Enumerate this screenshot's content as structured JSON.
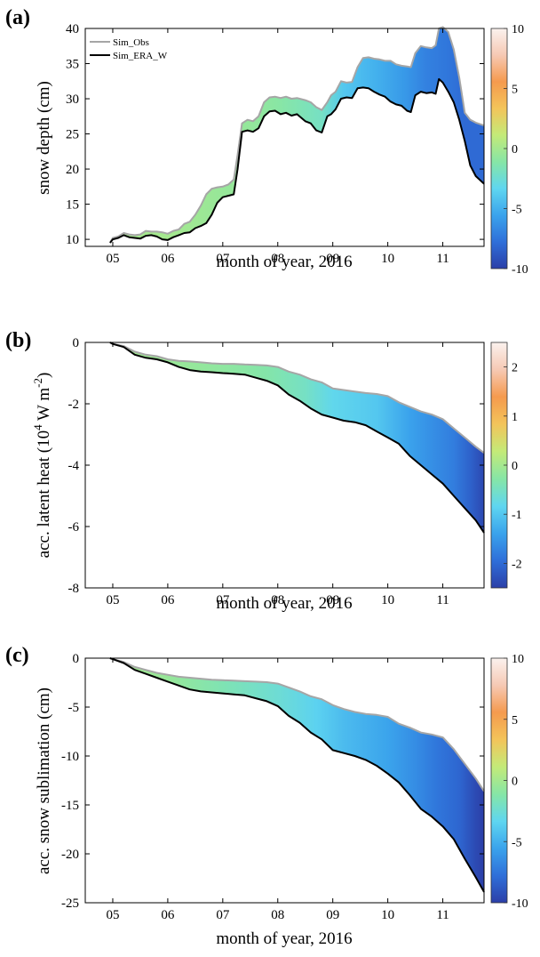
{
  "colorbar_colors": [
    "#2b3fa8",
    "#2f6fd9",
    "#3aa3ec",
    "#5fd6f0",
    "#86e6a6",
    "#c4ea78",
    "#f3c45a",
    "#f59a4e",
    "#f6c9b4",
    "#fbf2ee"
  ],
  "chart_data": [
    {
      "type": "area",
      "panel_label": "(a)",
      "xlabel": "month of year, 2016",
      "ylabel": "snow depth (cm)",
      "xlim": [
        4.5,
        11.75
      ],
      "ylim": [
        9,
        40
      ],
      "xticks": [
        5,
        6,
        7,
        8,
        9,
        10,
        11
      ],
      "xtick_labels": [
        "05",
        "06",
        "07",
        "08",
        "09",
        "10",
        "11"
      ],
      "yticks": [
        10,
        15,
        20,
        25,
        30,
        35,
        40
      ],
      "ytick_labels": [
        "10",
        "15",
        "20",
        "25",
        "30",
        "35",
        "40"
      ],
      "legend": [
        "Sim_Obs",
        "Sim_ERA_W"
      ],
      "legend_position": "top-left",
      "colorbar": {
        "range": [
          -10,
          10
        ],
        "ticks": [
          -10,
          -5,
          0,
          5,
          10
        ],
        "tick_labels": [
          "-10",
          "-5",
          "0",
          "5",
          "10"
        ]
      },
      "series": [
        {
          "name": "Sim_Obs",
          "color": "#a6a6a6",
          "x": [
            4.95,
            5.0,
            5.1,
            5.2,
            5.3,
            5.4,
            5.5,
            5.6,
            5.7,
            5.8,
            5.9,
            6.0,
            6.1,
            6.2,
            6.3,
            6.4,
            6.5,
            6.6,
            6.7,
            6.8,
            6.9,
            7.0,
            7.1,
            7.2,
            7.27,
            7.35,
            7.45,
            7.55,
            7.65,
            7.75,
            7.85,
            7.95,
            8.05,
            8.15,
            8.25,
            8.35,
            8.5,
            8.6,
            8.7,
            8.8,
            8.9,
            8.97,
            9.05,
            9.15,
            9.25,
            9.35,
            9.45,
            9.55,
            9.65,
            9.75,
            9.85,
            9.95,
            10.05,
            10.15,
            10.25,
            10.35,
            10.42,
            10.5,
            10.6,
            10.7,
            10.8,
            10.87,
            10.93,
            11.0,
            11.1,
            11.2,
            11.3,
            11.4,
            11.5,
            11.6,
            11.75
          ],
          "y": [
            9.5,
            10.2,
            10.4,
            10.9,
            10.7,
            10.6,
            10.7,
            11.2,
            11.1,
            11.1,
            11.0,
            10.8,
            11.2,
            11.4,
            12.2,
            12.5,
            13.5,
            14.8,
            16.4,
            17.2,
            17.4,
            17.5,
            17.8,
            18.5,
            22.0,
            26.5,
            27.0,
            26.8,
            27.5,
            29.5,
            30.2,
            30.3,
            30.1,
            30.3,
            30.0,
            30.1,
            29.8,
            29.5,
            28.8,
            28.4,
            29.5,
            30.5,
            31.0,
            32.5,
            32.3,
            32.4,
            34.5,
            35.8,
            35.9,
            35.7,
            35.6,
            35.4,
            35.4,
            34.9,
            34.7,
            34.6,
            34.5,
            36.5,
            37.5,
            37.3,
            37.2,
            37.6,
            40.0,
            40.2,
            39.5,
            37.0,
            33.0,
            28.0,
            27.0,
            26.6,
            26.2
          ]
        },
        {
          "name": "Sim_ERA_W",
          "color": "#000000",
          "x": [
            4.95,
            5.0,
            5.1,
            5.2,
            5.3,
            5.4,
            5.5,
            5.6,
            5.7,
            5.8,
            5.9,
            6.0,
            6.1,
            6.2,
            6.3,
            6.4,
            6.5,
            6.6,
            6.7,
            6.8,
            6.9,
            7.0,
            7.1,
            7.2,
            7.27,
            7.35,
            7.45,
            7.55,
            7.65,
            7.75,
            7.85,
            7.95,
            8.05,
            8.15,
            8.25,
            8.35,
            8.5,
            8.6,
            8.7,
            8.8,
            8.9,
            8.97,
            9.05,
            9.15,
            9.25,
            9.35,
            9.45,
            9.55,
            9.65,
            9.75,
            9.85,
            9.95,
            10.05,
            10.15,
            10.25,
            10.35,
            10.42,
            10.5,
            10.6,
            10.7,
            10.8,
            10.87,
            10.93,
            11.0,
            11.1,
            11.2,
            11.3,
            11.4,
            11.5,
            11.6,
            11.75
          ],
          "y": [
            9.5,
            10.0,
            10.2,
            10.6,
            10.3,
            10.2,
            10.1,
            10.5,
            10.6,
            10.4,
            10.0,
            9.9,
            10.3,
            10.6,
            10.9,
            11.0,
            11.6,
            11.9,
            12.3,
            13.5,
            15.2,
            16.0,
            16.2,
            16.4,
            20.0,
            25.3,
            25.5,
            25.3,
            25.8,
            27.5,
            28.2,
            28.3,
            27.8,
            28.0,
            27.6,
            27.8,
            26.8,
            26.5,
            25.5,
            25.2,
            27.5,
            27.8,
            28.5,
            30.0,
            30.2,
            30.1,
            31.5,
            31.6,
            31.5,
            31.0,
            30.6,
            30.3,
            29.6,
            29.2,
            29.0,
            28.3,
            28.1,
            30.5,
            31.0,
            30.8,
            30.9,
            30.7,
            32.8,
            32.3,
            31.0,
            29.5,
            27.0,
            24.0,
            20.5,
            19.0,
            17.9
          ]
        }
      ],
      "fill_color_values": [
        [
          5.0,
          0
        ],
        [
          6.0,
          0
        ],
        [
          7.0,
          -0.5
        ],
        [
          7.5,
          -0.6
        ],
        [
          8.0,
          -1
        ],
        [
          8.8,
          -2
        ],
        [
          9.2,
          -4
        ],
        [
          9.8,
          -5
        ],
        [
          10.3,
          -6
        ],
        [
          10.7,
          -7
        ],
        [
          11.1,
          -7.5
        ],
        [
          11.4,
          -8
        ],
        [
          11.75,
          -8
        ]
      ]
    },
    {
      "type": "area",
      "panel_label": "(b)",
      "xlabel": "month of year, 2016",
      "ylabel": "acc. latent heat (10",
      "ylabel_exp": "4",
      "ylabel_unit": " W m",
      "ylabel_unit_exp": "-2",
      "ylabel_close": ")",
      "xlim": [
        4.5,
        11.75
      ],
      "ylim": [
        -8,
        0
      ],
      "xticks": [
        5,
        6,
        7,
        8,
        9,
        10,
        11
      ],
      "xtick_labels": [
        "05",
        "06",
        "07",
        "08",
        "09",
        "10",
        "11"
      ],
      "yticks": [
        -8,
        -6,
        -4,
        -2,
        0
      ],
      "ytick_labels": [
        "-8",
        "-6",
        "-4",
        "-2",
        "0"
      ],
      "colorbar": {
        "range": [
          -2.5,
          2.5
        ],
        "ticks": [
          -2,
          -1,
          0,
          1,
          2
        ],
        "tick_labels": [
          "-2",
          "-1",
          "0",
          "1",
          "2"
        ]
      },
      "series": [
        {
          "name": "Sim_Obs",
          "color": "#a6a6a6",
          "x": [
            4.95,
            5.0,
            5.2,
            5.4,
            5.6,
            5.8,
            6.0,
            6.2,
            6.4,
            6.6,
            6.8,
            7.0,
            7.2,
            7.4,
            7.6,
            7.8,
            8.0,
            8.2,
            8.4,
            8.6,
            8.8,
            9.0,
            9.2,
            9.4,
            9.6,
            9.8,
            10.0,
            10.2,
            10.4,
            10.6,
            10.8,
            11.0,
            11.2,
            11.4,
            11.6,
            11.75
          ],
          "y": [
            0,
            -0.05,
            -0.12,
            -0.3,
            -0.4,
            -0.45,
            -0.55,
            -0.6,
            -0.62,
            -0.65,
            -0.68,
            -0.7,
            -0.7,
            -0.72,
            -0.73,
            -0.75,
            -0.8,
            -0.95,
            -1.05,
            -1.2,
            -1.3,
            -1.5,
            -1.55,
            -1.6,
            -1.65,
            -1.68,
            -1.75,
            -1.95,
            -2.1,
            -2.25,
            -2.35,
            -2.5,
            -2.8,
            -3.1,
            -3.4,
            -3.6
          ]
        },
        {
          "name": "Sim_ERA_W",
          "color": "#000000",
          "x": [
            4.95,
            5.0,
            5.2,
            5.4,
            5.6,
            5.8,
            6.0,
            6.2,
            6.4,
            6.6,
            6.8,
            7.0,
            7.2,
            7.4,
            7.6,
            7.8,
            8.0,
            8.2,
            8.4,
            8.6,
            8.8,
            9.0,
            9.2,
            9.4,
            9.6,
            9.8,
            10.0,
            10.2,
            10.4,
            10.6,
            10.8,
            11.0,
            11.2,
            11.4,
            11.6,
            11.75
          ],
          "y": [
            0,
            -0.05,
            -0.15,
            -0.4,
            -0.5,
            -0.55,
            -0.65,
            -0.8,
            -0.9,
            -0.95,
            -0.97,
            -1.0,
            -1.02,
            -1.05,
            -1.15,
            -1.25,
            -1.4,
            -1.7,
            -1.9,
            -2.15,
            -2.35,
            -2.45,
            -2.55,
            -2.6,
            -2.7,
            -2.9,
            -3.1,
            -3.3,
            -3.7,
            -4.0,
            -4.3,
            -4.6,
            -5.0,
            -5.4,
            -5.8,
            -6.2
          ]
        }
      ],
      "fill_color_values": [
        [
          5.0,
          0
        ],
        [
          6.0,
          -0.1
        ],
        [
          7.0,
          -0.2
        ],
        [
          7.8,
          -0.3
        ],
        [
          8.5,
          -0.5
        ],
        [
          9.0,
          -0.8
        ],
        [
          9.8,
          -1.0
        ],
        [
          10.4,
          -1.4
        ],
        [
          10.8,
          -1.6
        ],
        [
          11.2,
          -1.8
        ],
        [
          11.5,
          -2.1
        ],
        [
          11.75,
          -2.4
        ]
      ]
    },
    {
      "type": "area",
      "panel_label": "(c)",
      "xlabel": "month of year, 2016",
      "ylabel": "acc. snow sublimation (cm)",
      "xlim": [
        4.5,
        11.75
      ],
      "ylim": [
        -25,
        0
      ],
      "xticks": [
        5,
        6,
        7,
        8,
        9,
        10,
        11
      ],
      "xtick_labels": [
        "05",
        "06",
        "07",
        "08",
        "09",
        "10",
        "11"
      ],
      "yticks": [
        -25,
        -20,
        -15,
        -10,
        -5,
        0
      ],
      "ytick_labels": [
        "-25",
        "-20",
        "-15",
        "-10",
        "-5",
        "0"
      ],
      "colorbar": {
        "range": [
          -10,
          10
        ],
        "ticks": [
          -10,
          -5,
          0,
          5,
          10
        ],
        "tick_labels": [
          "-10",
          "-5",
          "0",
          "5",
          "10"
        ]
      },
      "series": [
        {
          "name": "Sim_Obs",
          "color": "#a6a6a6",
          "x": [
            4.95,
            5.0,
            5.2,
            5.4,
            5.6,
            5.8,
            6.0,
            6.2,
            6.4,
            6.6,
            6.8,
            7.0,
            7.2,
            7.4,
            7.6,
            7.8,
            8.0,
            8.2,
            8.4,
            8.6,
            8.8,
            9.0,
            9.2,
            9.4,
            9.6,
            9.8,
            10.0,
            10.2,
            10.4,
            10.6,
            10.8,
            11.0,
            11.2,
            11.4,
            11.6,
            11.75
          ],
          "y": [
            0,
            -0.1,
            -0.4,
            -0.9,
            -1.2,
            -1.5,
            -1.7,
            -1.9,
            -2.0,
            -2.1,
            -2.2,
            -2.25,
            -2.3,
            -2.35,
            -2.4,
            -2.45,
            -2.6,
            -3.0,
            -3.4,
            -3.9,
            -4.2,
            -4.8,
            -5.2,
            -5.5,
            -5.7,
            -5.8,
            -6.0,
            -6.7,
            -7.1,
            -7.6,
            -7.8,
            -8.1,
            -9.3,
            -10.8,
            -12.3,
            -13.6
          ]
        },
        {
          "name": "Sim_ERA_W",
          "color": "#000000",
          "x": [
            4.95,
            5.0,
            5.2,
            5.4,
            5.6,
            5.8,
            6.0,
            6.2,
            6.4,
            6.6,
            6.8,
            7.0,
            7.2,
            7.4,
            7.6,
            7.8,
            8.0,
            8.2,
            8.4,
            8.6,
            8.8,
            9.0,
            9.2,
            9.4,
            9.6,
            9.8,
            10.0,
            10.2,
            10.4,
            10.6,
            10.8,
            11.0,
            11.2,
            11.4,
            11.6,
            11.75
          ],
          "y": [
            0,
            -0.1,
            -0.5,
            -1.2,
            -1.6,
            -2.0,
            -2.4,
            -2.8,
            -3.2,
            -3.4,
            -3.5,
            -3.6,
            -3.7,
            -3.8,
            -4.1,
            -4.4,
            -4.9,
            -5.9,
            -6.6,
            -7.6,
            -8.3,
            -9.4,
            -9.7,
            -10.0,
            -10.4,
            -11.0,
            -11.8,
            -12.7,
            -14.0,
            -15.4,
            -16.2,
            -17.2,
            -18.5,
            -20.5,
            -22.4,
            -23.9
          ]
        }
      ],
      "fill_color_values": [
        [
          5.0,
          0
        ],
        [
          6.0,
          -0.5
        ],
        [
          7.0,
          -1.5
        ],
        [
          8.0,
          -2.5
        ],
        [
          8.7,
          -3.5
        ],
        [
          9.2,
          -4.5
        ],
        [
          10.0,
          -5.5
        ],
        [
          10.5,
          -6.5
        ],
        [
          10.9,
          -7.5
        ],
        [
          11.3,
          -8.2
        ],
        [
          11.6,
          -9.5
        ],
        [
          11.75,
          -10
        ]
      ]
    }
  ]
}
